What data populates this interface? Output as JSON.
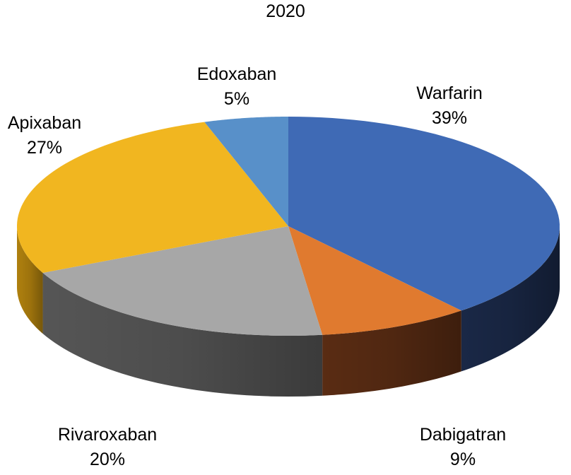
{
  "chart_data": {
    "type": "pie",
    "title": "2020",
    "slices": [
      {
        "label": "Warfarin",
        "value": 39,
        "display": "39%",
        "color": "#3F6AB5",
        "side": "#1B2A4A"
      },
      {
        "label": "Dabigatran",
        "value": 9,
        "display": "9%",
        "color": "#E07A2F",
        "side": "#5E2E14"
      },
      {
        "label": "Rivaroxaban",
        "value": 20,
        "display": "20%",
        "color": "#A7A7A7",
        "side": "#5A5A5A"
      },
      {
        "label": "Apixaban",
        "value": 27,
        "display": "27%",
        "color": "#F1B620",
        "side": "#B9870F"
      },
      {
        "label": "Edoxaban",
        "value": 5,
        "display": "5%",
        "color": "#5890C9",
        "side": "#2F5A8A"
      }
    ],
    "legend": false
  }
}
